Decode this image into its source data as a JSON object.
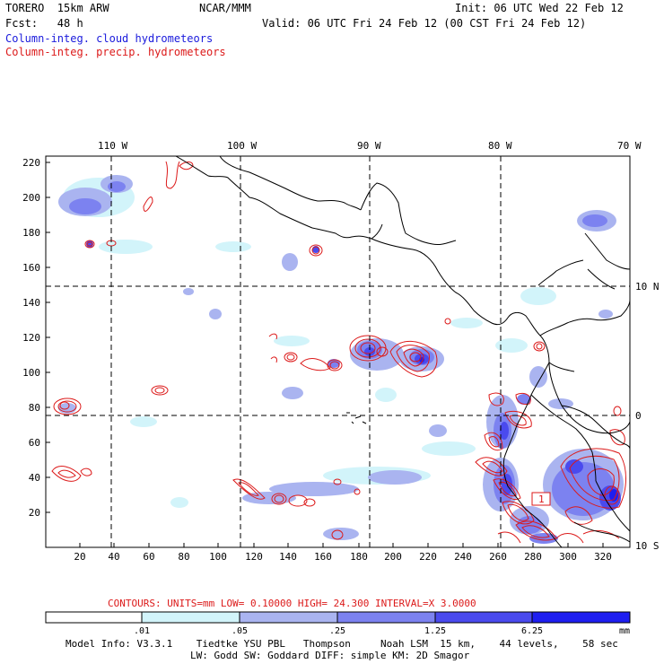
{
  "header": {
    "model": "TORERO  15km ARW",
    "org": "NCAR/MMM",
    "init": "Init: 06 UTC Wed 22 Feb 12",
    "fcst": "Fcst:   48 h",
    "valid": "Valid: 06 UTC Fri 24 Feb 12 (00 CST Fri 24 Feb 12)",
    "field1": "Column-integ. cloud hydrometeors",
    "field2": "Column-integ. precip. hydrometeors"
  },
  "map": {
    "lon_labels": [
      "110 W",
      "100 W",
      "90 W",
      "80 W",
      "70 W"
    ],
    "lat_labels": [
      "10 N",
      "0",
      "10 S"
    ],
    "y_ticks": [
      "220",
      "200",
      "180",
      "160",
      "140",
      "120",
      "100",
      "80",
      "60",
      "40",
      "20"
    ],
    "x_ticks": [
      "20",
      "40",
      "60",
      "80",
      "100",
      "120",
      "140",
      "160",
      "180",
      "200",
      "220",
      "240",
      "260",
      "280",
      "300",
      "320"
    ],
    "max_label": "1",
    "colors": {
      "land_outline": "#000000",
      "shade1": "#d2f4fa",
      "shade2": "#aab4f0",
      "shade3": "#7c82f0",
      "shade4": "#4a4aee",
      "shade5": "#1e1ef0",
      "contour": "#dc1a1a"
    }
  },
  "contour_info": {
    "label": "CONTOURS:  UNITS=mm  LOW= 0.10000      HIGH=  24.300      INTERVAL=X  3.0000"
  },
  "colorbar": {
    "values": [
      ".01",
      ".05",
      ".25",
      "1.25",
      "6.25"
    ],
    "units": "mm"
  },
  "footer": {
    "line1": "Model Info: V3.3.1    Tiedtke YSU PBL   Thompson     Noah LSM  15 km,    44 levels,    58 sec",
    "line2": "LW: Godd SW: Goddard DIFF: simple KM: 2D Smagor"
  }
}
